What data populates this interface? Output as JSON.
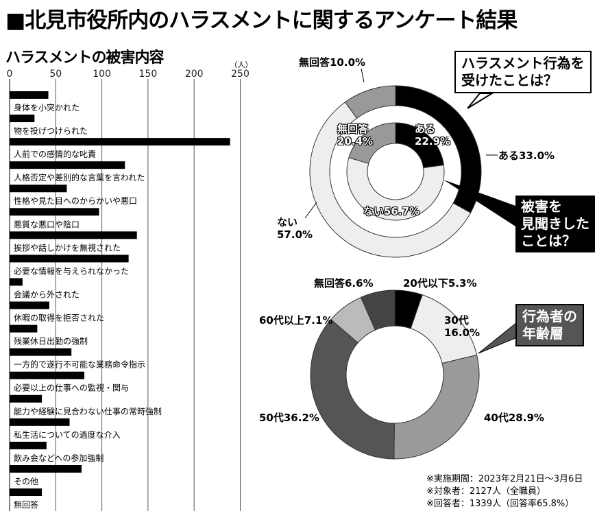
{
  "title": "■北見市役所内のハラスメントに関するアンケート結果",
  "notes": [
    "※実施期間：2023年2月21日～3月6日",
    "※対象者：2127人（全職員）",
    "※回答者：1339人（回答率65.8%）"
  ],
  "chart_data": [
    {
      "type": "bar",
      "orientation": "horizontal",
      "title": "ハラスメントの被害内容",
      "unit": "（人）",
      "xlim": [
        0,
        250
      ],
      "xticks": [
        "0",
        "50",
        "100",
        "150",
        "200",
        "250"
      ],
      "grid": true,
      "categories": [
        "身体を小突かれた",
        "物を投げつけられた",
        "人前での感情的な叱責",
        "人格否定や差別的な言葉を言われた",
        "性格や見た目へのからかいや悪口",
        "悪質な悪口や陰口",
        "挨拶や話しかけを無視された",
        "必要な情報を与えられなかった",
        "会議から外された",
        "休暇の取得を拒否された",
        "残業休日出勤の強制",
        "一方的で遂行不可能な業務命令指示",
        "必要以上の仕事への監視・関与",
        "能力や経験に見合わない仕事の常時強制",
        "私生活についての過度な介入",
        "飲み会などへの参加強制",
        "その他",
        "無回答"
      ],
      "values": [
        42,
        27,
        239,
        125,
        62,
        97,
        138,
        129,
        14,
        43,
        30,
        67,
        81,
        35,
        65,
        40,
        78,
        35
      ]
    },
    {
      "type": "pie",
      "variant": "double-donut",
      "callouts": [
        "ハラスメント行為を受けたことは？",
        "被害を見聞きしたことは？"
      ],
      "series": [
        {
          "name": "ハラスメント行為を受けたことは？",
          "ring": "outer",
          "slices": [
            {
              "label": "ある33.0%",
              "value": 33.0,
              "color": "#000000"
            },
            {
              "label": "ない57.0%",
              "value": 57.0,
              "color": "#eeeeee"
            },
            {
              "label": "無回答10.0%",
              "value": 10.0,
              "color": "#999999"
            }
          ]
        },
        {
          "name": "被害を見聞きしたことは？",
          "ring": "inner",
          "slices": [
            {
              "label": "ある22.9%",
              "value": 22.9,
              "color": "#000000"
            },
            {
              "label": "ない56.7%",
              "value": 56.7,
              "color": "#eeeeee"
            },
            {
              "label": "無回答20.4%",
              "value": 20.4,
              "color": "#999999"
            }
          ]
        }
      ]
    },
    {
      "type": "pie",
      "variant": "donut",
      "title": "行為者の年齢層",
      "slices": [
        {
          "label": "20代以下5.3%",
          "value": 5.3,
          "color": "#000000"
        },
        {
          "label": "30代16.0%",
          "value": 16.0,
          "color": "#eeeeee"
        },
        {
          "label": "40代28.9%",
          "value": 28.9,
          "color": "#9a9a9a"
        },
        {
          "label": "50代36.2%",
          "value": 36.2,
          "color": "#555555"
        },
        {
          "label": "60代以上7.1%",
          "value": 7.1,
          "color": "#bbbbbb"
        },
        {
          "label": "無回答6.6%",
          "value": 6.6,
          "color": "#444444"
        }
      ]
    }
  ],
  "labels": {
    "out_aru": "ある33.0%",
    "out_nai1": "ない",
    "out_nai2": "57.0%",
    "out_mu": "無回答10.0%",
    "in_aru1": "ある",
    "in_aru2": "22.9%",
    "in_nai": "ない56.7%",
    "in_mu1": "無回答",
    "in_mu2": "20.4%",
    "age20": "20代以下5.3%",
    "age30a": "30代",
    "age30b": "16.0%",
    "age40": "40代28.9%",
    "age50": "50代36.2%",
    "age60": "60代以上7.1%",
    "agemu": "無回答6.6%",
    "box1a": "ハラスメント行為を",
    "box1b": "受けたことは？",
    "box2a": "被害を",
    "box2b": "見聞きした",
    "box2c": "ことは？",
    "box3a": "行為者の",
    "box3b": "年齢層"
  }
}
